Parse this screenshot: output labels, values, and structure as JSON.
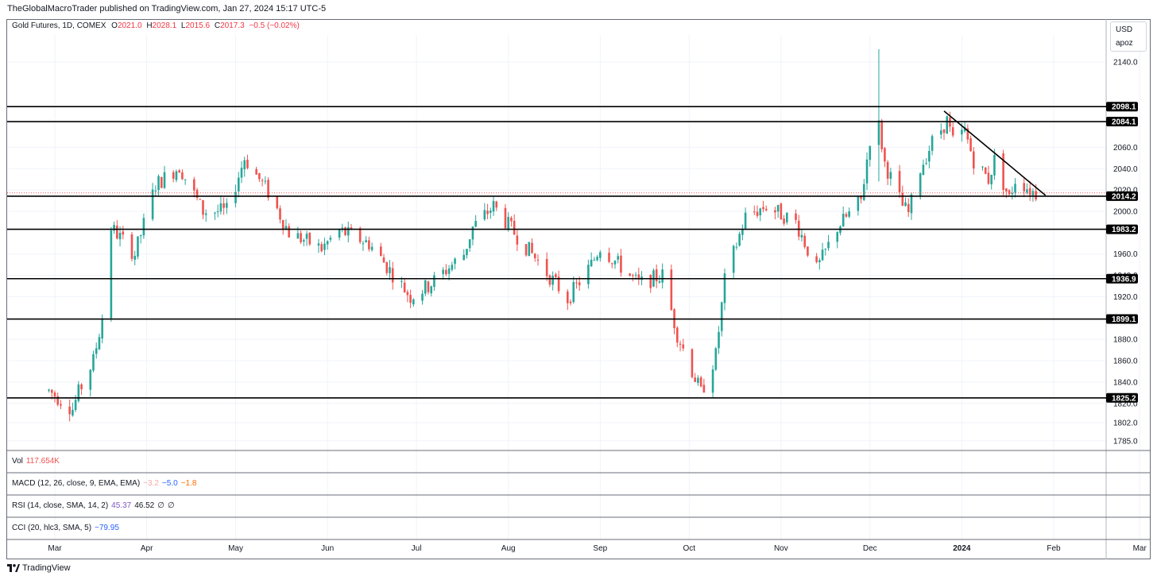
{
  "header": {
    "publish_line": "TheGlobalMacroTrader published on TradingView.com, Jan 27, 2024 15:17 UTC-5"
  },
  "legend": {
    "symbol": "Gold Futures, 1D, COMEX",
    "o_label": "O",
    "o": "2021.0",
    "h_label": "H",
    "h": "2028.1",
    "l_label": "L",
    "l": "2015.6",
    "c_label": "C",
    "c": "2017.3",
    "change": "−0.5 (−0.02%)"
  },
  "scale_box": {
    "currency": "USD",
    "mode": "apoz"
  },
  "panes": {
    "vol": {
      "name": "Vol",
      "value": "117.654K"
    },
    "macd": {
      "name": "MACD (12, 26, close, 9, EMA, EMA)",
      "v1": "−3.2",
      "v2": "−5.0",
      "v3": "−1.8"
    },
    "rsi": {
      "name": "RSI (14, close, SMA, 14, 2)",
      "v1": "45.37",
      "v2": "46.52",
      "v3": "∅",
      "v4": "∅"
    },
    "cci": {
      "name": "CCI (20, hlc3, SMA, 5)",
      "v1": "−79.95"
    }
  },
  "footer": {
    "brand": "TradingView"
  },
  "colors": {
    "up": "#26a69a",
    "down": "#ef5350",
    "grid": "#f0f3fa",
    "line": "#000000"
  },
  "chart_data": {
    "type": "candlestick",
    "y_ticks": [
      "2140.0",
      "2060.0",
      "2040.0",
      "2020.0",
      "2000.0",
      "1960.0",
      "1940.0",
      "1920.0",
      "1880.0",
      "1860.0",
      "1840.0",
      "1820.0",
      "1802.0",
      "1785.0"
    ],
    "y_tick_values": [
      2140,
      2060,
      2040,
      2020,
      2000,
      1960,
      1940,
      1920,
      1880,
      1860,
      1840,
      1820,
      1802,
      1785
    ],
    "x_labels": [
      "Mar",
      "Apr",
      "May",
      "Jun",
      "Jul",
      "Aug",
      "Sep",
      "Oct",
      "Nov",
      "Dec",
      "2024",
      "Feb",
      "Mar"
    ],
    "horizontal_levels": [
      "2098.1",
      "2084.1",
      "2014.2",
      "1983.2",
      "1936.9",
      "1899.1",
      "1825.2"
    ],
    "horizontal_level_values": [
      2098.1,
      2084.1,
      2014.2,
      1983.2,
      1936.9,
      1899.1,
      1825.2
    ],
    "last_price": 2017.3,
    "trendline": {
      "from": {
        "date": "2023-12-26",
        "price": 2094
      },
      "to": {
        "date": "2024-01-26",
        "price": 2018
      }
    },
    "path": [
      [
        "2023-02-27",
        1832
      ],
      [
        "2023-03-07",
        1815
      ],
      [
        "2023-03-09",
        1830
      ],
      [
        "2023-03-14",
        1860
      ],
      [
        "2023-03-17",
        1900
      ],
      [
        "2023-03-20",
        1985
      ],
      [
        "2023-03-28",
        1960
      ],
      [
        "2023-04-04",
        2025
      ],
      [
        "2023-04-12",
        2042
      ],
      [
        "2023-04-20",
        2000
      ],
      [
        "2023-04-28",
        2000
      ],
      [
        "2023-05-04",
        2050
      ],
      [
        "2023-05-12",
        2018
      ],
      [
        "2023-05-19",
        1980
      ],
      [
        "2023-05-30",
        1965
      ],
      [
        "2023-06-05",
        1982
      ],
      [
        "2023-06-15",
        1970
      ],
      [
        "2023-06-29",
        1920
      ],
      [
        "2023-07-05",
        1930
      ],
      [
        "2023-07-17",
        1960
      ],
      [
        "2023-07-20",
        1985
      ],
      [
        "2023-07-27",
        2005
      ],
      [
        "2023-08-03",
        1980
      ],
      [
        "2023-08-09",
        1960
      ],
      [
        "2023-08-21",
        1918
      ],
      [
        "2023-08-29",
        1950
      ],
      [
        "2023-09-01",
        1967
      ],
      [
        "2023-09-14",
        1932
      ],
      [
        "2023-09-22",
        1940
      ],
      [
        "2023-09-27",
        1885
      ],
      [
        "2023-10-05",
        1830
      ],
      [
        "2023-10-10",
        1865
      ],
      [
        "2023-10-13",
        1935
      ],
      [
        "2023-10-20",
        1995
      ],
      [
        "2023-10-27",
        2005
      ],
      [
        "2023-11-06",
        1990
      ],
      [
        "2023-11-13",
        1945
      ],
      [
        "2023-11-20",
        1985
      ],
      [
        "2023-11-28",
        2010
      ],
      [
        "2023-12-01",
        2068
      ],
      [
        "2023-12-04",
        2080
      ],
      [
        "2023-12-06",
        2045
      ],
      [
        "2023-12-12",
        2005
      ],
      [
        "2023-12-14",
        1998
      ],
      [
        "2023-12-18",
        2040
      ],
      [
        "2023-12-22",
        2065
      ],
      [
        "2023-12-27",
        2085
      ],
      [
        "2023-12-29",
        2065
      ],
      [
        "2024-01-02",
        2075
      ],
      [
        "2024-01-05",
        2048
      ],
      [
        "2024-01-10",
        2030
      ],
      [
        "2024-01-12",
        2048
      ],
      [
        "2024-01-17",
        2012
      ],
      [
        "2024-01-19",
        2030
      ],
      [
        "2024-01-22",
        2025
      ],
      [
        "2024-01-24",
        2020
      ],
      [
        "2024-01-26",
        2017
      ]
    ]
  }
}
